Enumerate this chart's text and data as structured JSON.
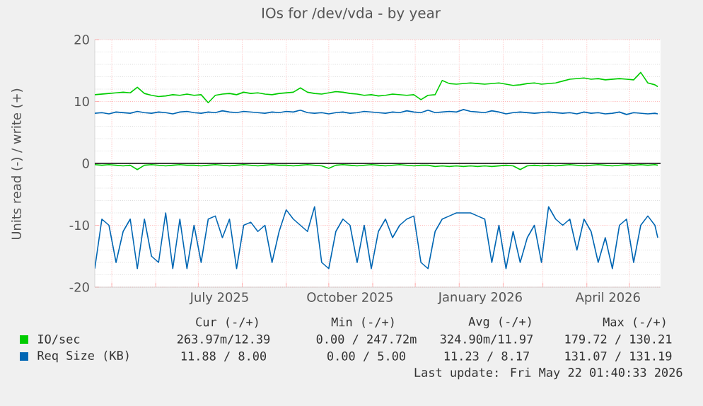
{
  "chart_data": {
    "type": "line",
    "title": "IOs for /dev/vda - by year",
    "ylabel": "Units read (-) / write (+)",
    "x": [
      "2025-04-19",
      "2025-04-24",
      "2025-04-29",
      "2025-05-04",
      "2025-05-09",
      "2025-05-14",
      "2025-05-19",
      "2025-05-24",
      "2025-05-29",
      "2025-06-03",
      "2025-06-08",
      "2025-06-13",
      "2025-06-18",
      "2025-06-23",
      "2025-06-28",
      "2025-07-03",
      "2025-07-08",
      "2025-07-13",
      "2025-07-18",
      "2025-07-23",
      "2025-07-28",
      "2025-08-02",
      "2025-08-07",
      "2025-08-12",
      "2025-08-17",
      "2025-08-22",
      "2025-08-27",
      "2025-09-01",
      "2025-09-06",
      "2025-09-11",
      "2025-09-16",
      "2025-09-21",
      "2025-09-26",
      "2025-10-01",
      "2025-10-06",
      "2025-10-11",
      "2025-10-16",
      "2025-10-21",
      "2025-10-26",
      "2025-10-31",
      "2025-11-05",
      "2025-11-10",
      "2025-11-15",
      "2025-11-20",
      "2025-11-25",
      "2025-11-30",
      "2025-12-05",
      "2025-12-10",
      "2025-12-15",
      "2025-12-20",
      "2025-12-25",
      "2025-12-30",
      "2026-01-04",
      "2026-01-09",
      "2026-01-14",
      "2026-01-19",
      "2026-01-24",
      "2026-01-29",
      "2026-02-03",
      "2026-02-08",
      "2026-02-13",
      "2026-02-18",
      "2026-02-23",
      "2026-02-28",
      "2026-03-05",
      "2026-03-10",
      "2026-03-15",
      "2026-03-20",
      "2026-03-25",
      "2026-03-30",
      "2026-04-04",
      "2026-04-09",
      "2026-04-14",
      "2026-04-19",
      "2026-04-24",
      "2026-04-29",
      "2026-05-04",
      "2026-05-09",
      "2026-05-14",
      "2026-05-19",
      "2026-05-21"
    ],
    "series": [
      {
        "name": "IO/sec",
        "color": "#00cc00",
        "values": [
          11.1,
          11.2,
          11.3,
          11.4,
          11.5,
          11.4,
          12.3,
          11.3,
          11.0,
          10.8,
          10.9,
          11.1,
          11.0,
          11.2,
          11.0,
          11.1,
          9.8,
          11.0,
          11.2,
          11.3,
          11.1,
          11.5,
          11.3,
          11.4,
          11.2,
          11.1,
          11.3,
          11.4,
          11.5,
          12.2,
          11.5,
          11.3,
          11.2,
          11.4,
          11.6,
          11.5,
          11.3,
          11.2,
          11.0,
          11.1,
          10.9,
          11.0,
          11.2,
          11.1,
          11.0,
          11.1,
          10.3,
          11.0,
          11.1,
          13.4,
          12.9,
          12.8,
          12.9,
          13.0,
          12.9,
          12.8,
          12.9,
          13.0,
          12.8,
          12.6,
          12.7,
          12.9,
          13.0,
          12.8,
          12.9,
          13.0,
          13.3,
          13.6,
          13.7,
          13.8,
          13.6,
          13.7,
          13.5,
          13.6,
          13.7,
          13.6,
          13.5,
          14.7,
          13.0,
          12.7,
          12.4
        ]
      },
      {
        "color": "#00cc00",
        "values": [
          -0.2,
          -0.3,
          -0.2,
          -0.3,
          -0.4,
          -0.3,
          -1.0,
          -0.3,
          -0.2,
          -0.3,
          -0.4,
          -0.3,
          -0.2,
          -0.3,
          -0.3,
          -0.4,
          -0.3,
          -0.2,
          -0.3,
          -0.4,
          -0.3,
          -0.2,
          -0.3,
          -0.4,
          -0.3,
          -0.2,
          -0.3,
          -0.3,
          -0.4,
          -0.3,
          -0.2,
          -0.3,
          -0.4,
          -0.8,
          -0.3,
          -0.2,
          -0.3,
          -0.4,
          -0.3,
          -0.2,
          -0.3,
          -0.4,
          -0.3,
          -0.2,
          -0.3,
          -0.4,
          -0.3,
          -0.3,
          -0.5,
          -0.4,
          -0.5,
          -0.4,
          -0.5,
          -0.4,
          -0.5,
          -0.4,
          -0.5,
          -0.4,
          -0.3,
          -0.4,
          -1.0,
          -0.4,
          -0.3,
          -0.4,
          -0.3,
          -0.4,
          -0.3,
          -0.2,
          -0.3,
          -0.4,
          -0.3,
          -0.2,
          -0.3,
          -0.4,
          -0.3,
          -0.2,
          -0.3,
          -0.2,
          -0.3,
          -0.2,
          -0.3
        ]
      },
      {
        "name": "Req Size (KB)",
        "color": "#0066b3",
        "values": [
          8.1,
          8.2,
          8.0,
          8.3,
          8.2,
          8.1,
          8.4,
          8.2,
          8.1,
          8.3,
          8.2,
          8.0,
          8.3,
          8.4,
          8.2,
          8.1,
          8.3,
          8.2,
          8.5,
          8.3,
          8.2,
          8.4,
          8.3,
          8.2,
          8.1,
          8.3,
          8.2,
          8.4,
          8.3,
          8.6,
          8.2,
          8.1,
          8.2,
          8.0,
          8.2,
          8.3,
          8.1,
          8.2,
          8.4,
          8.3,
          8.2,
          8.1,
          8.3,
          8.2,
          8.5,
          8.3,
          8.2,
          8.6,
          8.2,
          8.3,
          8.4,
          8.3,
          8.7,
          8.4,
          8.3,
          8.2,
          8.5,
          8.3,
          8.0,
          8.2,
          8.3,
          8.2,
          8.1,
          8.2,
          8.3,
          8.2,
          8.1,
          8.2,
          8.0,
          8.3,
          8.1,
          8.2,
          8.0,
          8.1,
          8.3,
          7.9,
          8.2,
          8.1,
          8.0,
          8.1,
          8.0
        ]
      },
      {
        "color": "#0066b3",
        "values": [
          -17,
          -9,
          -10,
          -16,
          -11,
          -9,
          -17,
          -9,
          -15,
          -16,
          -8,
          -17,
          -9,
          -17,
          -10,
          -16,
          -9,
          -8.5,
          -12,
          -9,
          -17,
          -10,
          -9.5,
          -11,
          -10,
          -16,
          -11,
          -7.5,
          -9,
          -10,
          -11,
          -7,
          -16,
          -17,
          -11,
          -9,
          -10,
          -16,
          -10,
          -17,
          -11,
          -9,
          -12,
          -10,
          -9,
          -8.5,
          -16,
          -17,
          -11,
          -9,
          -8.5,
          -8,
          -8,
          -8,
          -8.5,
          -9,
          -16,
          -10,
          -17,
          -11,
          -16,
          -12,
          -10,
          -16,
          -7,
          -9,
          -10,
          -9,
          -14,
          -9,
          -11,
          -16,
          -12,
          -17,
          -10,
          -9,
          -16,
          -10,
          -8.5,
          -10,
          -12
        ]
      }
    ],
    "xlim": [
      "2025-04-19",
      "2026-05-23"
    ],
    "xticks": [
      {
        "value": "2025-05-01",
        "label": null
      },
      {
        "value": "2025-06-01",
        "label": null
      },
      {
        "value": "2025-07-01",
        "label": null
      },
      {
        "value": "2025-08-01",
        "label": null
      },
      {
        "value": "2025-09-01",
        "label": null
      },
      {
        "value": "2025-10-01",
        "label": null
      },
      {
        "value": "2025-11-01",
        "label": null
      },
      {
        "value": "2025-12-01",
        "label": null
      },
      {
        "value": "2026-01-01",
        "label": null
      },
      {
        "value": "2026-02-01",
        "label": null
      },
      {
        "value": "2026-03-01",
        "label": null
      },
      {
        "value": "2026-04-01",
        "label": null
      },
      {
        "value": "2026-05-01",
        "label": null
      },
      {
        "value": "2025-07-16",
        "label": "July 2025"
      },
      {
        "value": "2025-10-16",
        "label": "October 2025"
      },
      {
        "value": "2026-01-16",
        "label": "January 2026"
      },
      {
        "value": "2026-04-16",
        "label": "April 2026"
      }
    ],
    "ylim": [
      -20,
      20
    ],
    "yticks": [
      -20,
      -10,
      0,
      10,
      20
    ],
    "grid": true,
    "legend": "bottom",
    "ref_lines": [
      {
        "axis": "y",
        "value": 0,
        "color": "#000000"
      }
    ],
    "annotations": [
      "Cur (-/+)",
      "Min (-/+)",
      "Avg (-/+)",
      "Max (-/+)",
      "263.97m/12.39",
      "0.00 / 247.72m",
      "324.90m/11.97",
      "179.72 / 130.21",
      "11.88 / 8.00",
      "0.00 / 5.00",
      "11.23 / 8.17",
      "131.07 / 131.19",
      "Last update: Fri May 22 01:40:33 2026"
    ]
  }
}
